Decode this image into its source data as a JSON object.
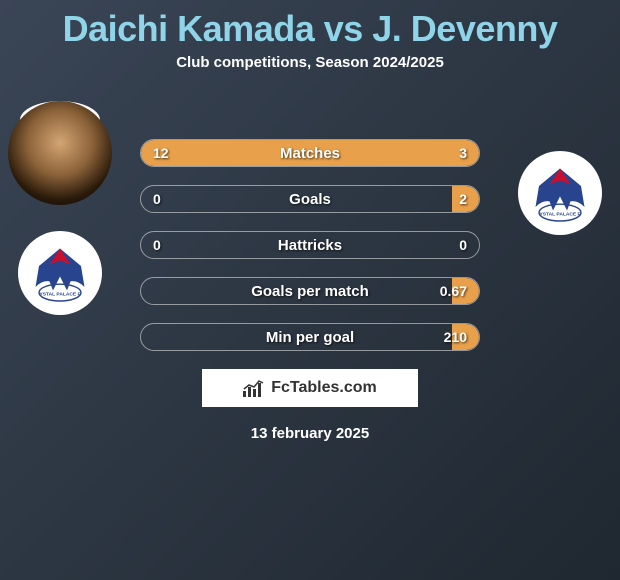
{
  "title": "Daichi Kamada vs J. Devenny",
  "subtitle": "Club competitions, Season 2024/2025",
  "date": "13 february 2025",
  "brand_text": "FcTables.com",
  "stats": [
    {
      "label": "Matches",
      "left_val": "12",
      "right_val": "3",
      "left_pct": 80,
      "right_pct": 20
    },
    {
      "label": "Goals",
      "left_val": "0",
      "right_val": "2",
      "left_pct": 0,
      "right_pct": 8
    },
    {
      "label": "Hattricks",
      "left_val": "0",
      "right_val": "0",
      "left_pct": 0,
      "right_pct": 0
    },
    {
      "label": "Goals per match",
      "left_val": "",
      "right_val": "0.67",
      "left_pct": 0,
      "right_pct": 8
    },
    {
      "label": "Min per goal",
      "left_val": "",
      "right_val": "210",
      "left_pct": 0,
      "right_pct": 8
    }
  ],
  "colors": {
    "title": "#8fd4e8",
    "bar_fill": "#e8a04a",
    "bg_from": "#3a4556",
    "bg_to": "#1f2730"
  }
}
